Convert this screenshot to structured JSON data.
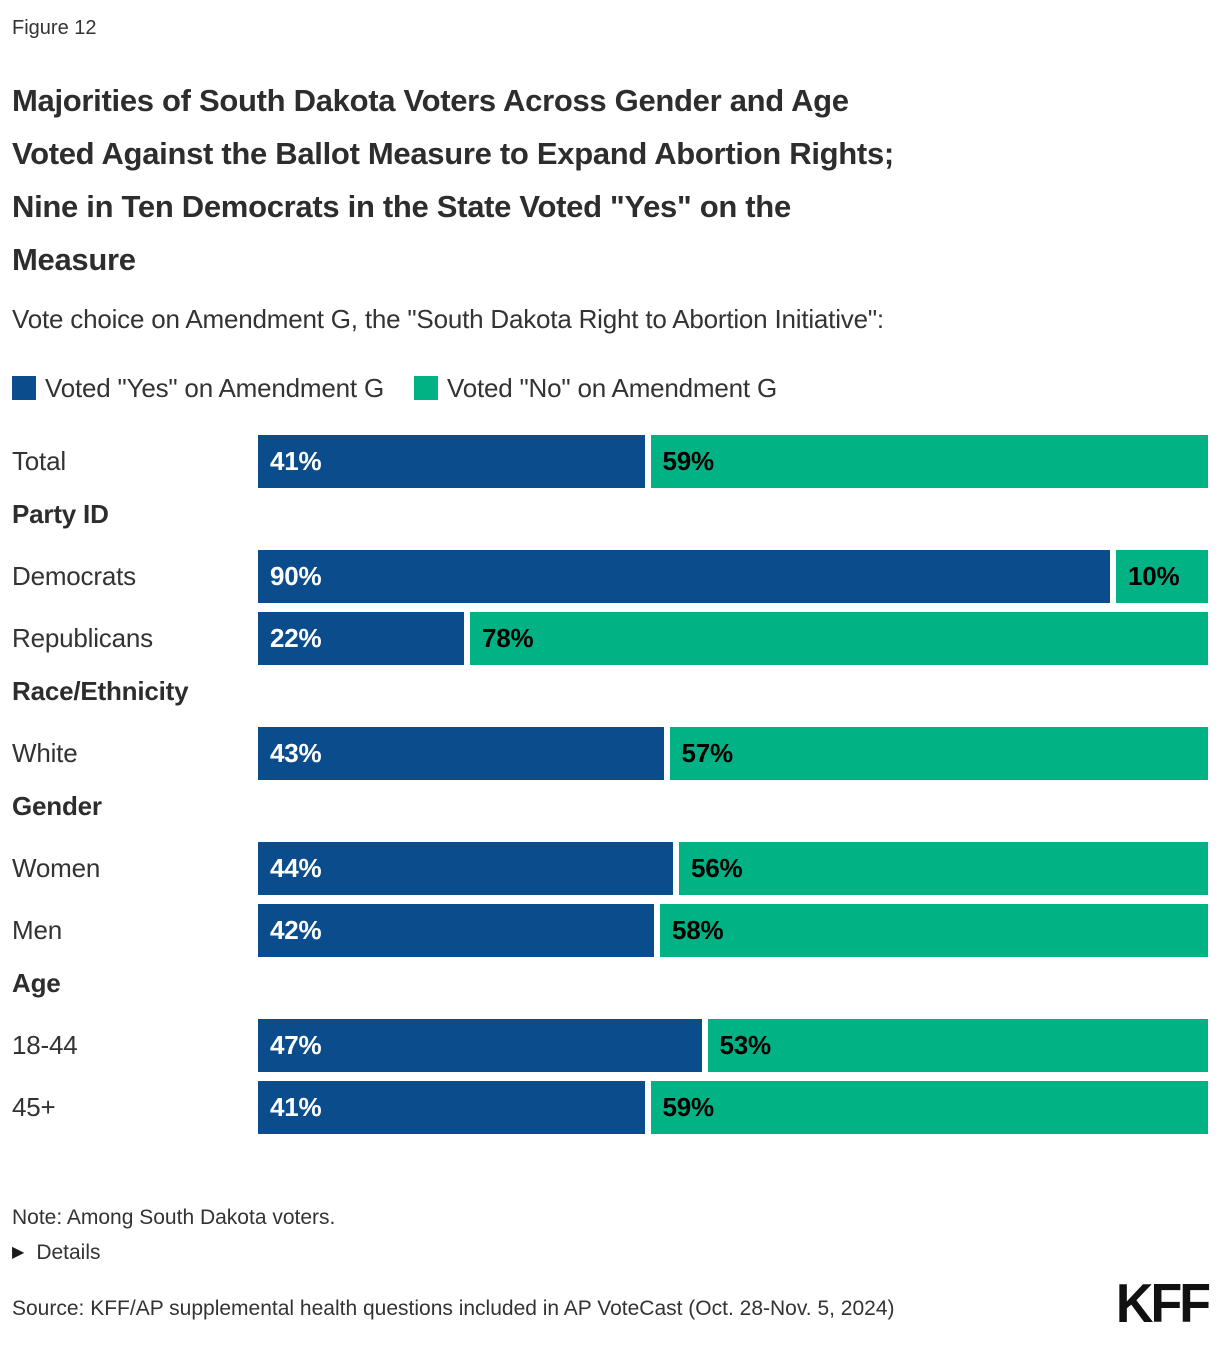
{
  "figure_label": "Figure 12",
  "title_lines": {
    "line1": "Majorities of South Dakota Voters Across Gender and Age",
    "line2": "Voted Against the Ballot Measure to Expand Abortion Rights;",
    "line3": "Nine in Ten Democrats in the State Voted \"Yes\" on the",
    "line4": "Measure"
  },
  "subtitle": "Vote choice on Amendment G, the \"South Dakota Right to Abortion Initiative\":",
  "legend": {
    "yes_label": "Voted \"Yes\" on Amendment G",
    "no_label": "Voted \"No\" on Amendment G"
  },
  "colors": {
    "yes_blue": "#0B4C8C",
    "no_green": "#00B284",
    "yes_value_text": "#ffffff",
    "no_value_text": "#000000"
  },
  "chart_data": {
    "type": "bar",
    "orientation": "horizontal-stacked",
    "value_suffix": "%",
    "xlim": [
      0,
      100
    ],
    "legend_position": "top",
    "series_names": [
      "Voted \"Yes\" on Amendment G",
      "Voted \"No\" on Amendment G"
    ],
    "rows": [
      {
        "kind": "bar",
        "label": "Total",
        "yes": 41,
        "no": 59
      },
      {
        "kind": "header",
        "label": "Party ID"
      },
      {
        "kind": "bar",
        "label": "Democrats",
        "yes": 90,
        "no": 10
      },
      {
        "kind": "bar",
        "label": "Republicans",
        "yes": 22,
        "no": 78
      },
      {
        "kind": "header",
        "label": "Race/Ethnicity"
      },
      {
        "kind": "bar",
        "label": "White",
        "yes": 43,
        "no": 57
      },
      {
        "kind": "header",
        "label": "Gender"
      },
      {
        "kind": "bar",
        "label": "Women",
        "yes": 44,
        "no": 56
      },
      {
        "kind": "bar",
        "label": "Men",
        "yes": 42,
        "no": 58
      },
      {
        "kind": "header",
        "label": "Age"
      },
      {
        "kind": "bar",
        "label": "18-44",
        "yes": 47,
        "no": 53
      },
      {
        "kind": "bar",
        "label": "45+",
        "yes": 41,
        "no": 59
      }
    ]
  },
  "footer": {
    "note": "Note: Among South Dakota voters.",
    "details_triangle": "▶",
    "details_label": "Details",
    "source": "Source: KFF/AP supplemental health questions included in AP VoteCast (Oct. 28-Nov. 5, 2024)",
    "logo_text": "KFF"
  }
}
